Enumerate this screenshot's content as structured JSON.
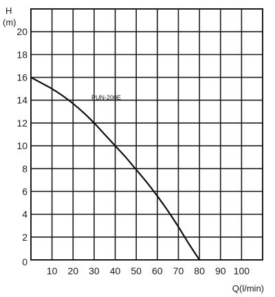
{
  "chart_data": {
    "type": "line",
    "title": "",
    "xlabel": "Q(l/min)",
    "ylabel_top": "H",
    "ylabel_unit": "(m)",
    "xlim": [
      0,
      110
    ],
    "ylim": [
      0,
      22
    ],
    "x_ticks": [
      10,
      20,
      30,
      40,
      50,
      60,
      70,
      80,
      90,
      100
    ],
    "y_ticks": [
      0,
      2,
      4,
      6,
      8,
      10,
      12,
      14,
      16,
      18,
      20
    ],
    "grid": true,
    "series": [
      {
        "name": "PUN-200E",
        "x": [
          0,
          5,
          10,
          15,
          20,
          25,
          30,
          35,
          40,
          45,
          50,
          55,
          60,
          65,
          70,
          75,
          80
        ],
        "y": [
          16.0,
          15.5,
          15.0,
          14.4,
          13.7,
          12.9,
          12.0,
          11.0,
          10.0,
          9.0,
          7.9,
          6.8,
          5.6,
          4.3,
          2.9,
          1.4,
          0.0
        ]
      }
    ],
    "colors": {
      "grid": "#1a1a1a",
      "line": "#0d0d0d",
      "background": "#ffffff"
    }
  }
}
